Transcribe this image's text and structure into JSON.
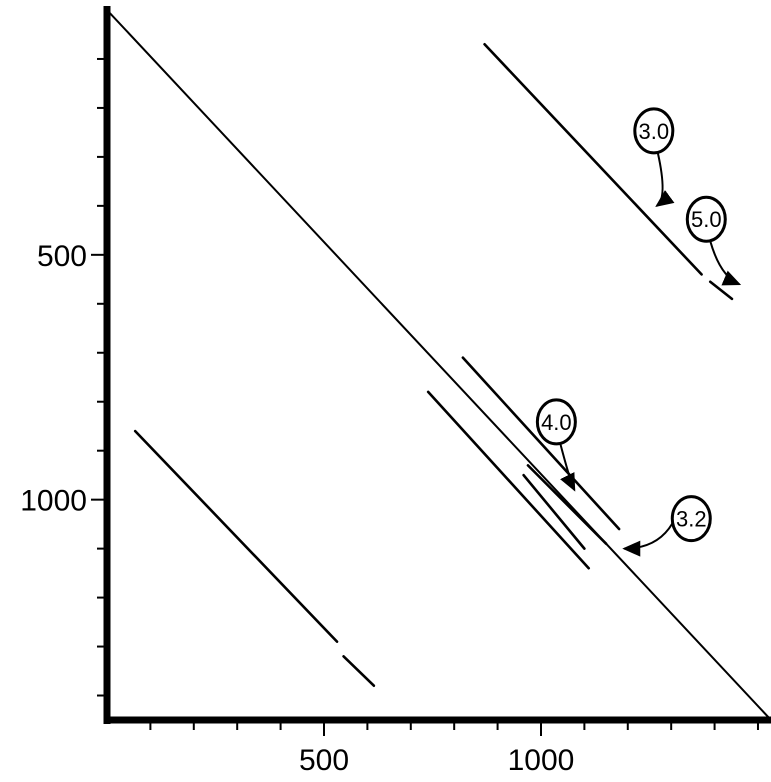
{
  "chart_data": {
    "type": "scatter",
    "title": "",
    "xlabel": "",
    "ylabel": "",
    "xlim": [
      0,
      1530
    ],
    "ylim": [
      0,
      1450
    ],
    "y_inverted": true,
    "x_ticks": {
      "labeled": [
        500,
        1000
      ],
      "all": [
        100,
        200,
        300,
        400,
        500,
        600,
        700,
        800,
        900,
        1000,
        1100,
        1200,
        1300,
        1400,
        1500
      ]
    },
    "y_ticks": {
      "labeled": [
        500,
        1000
      ],
      "all": [
        100,
        200,
        300,
        400,
        500,
        600,
        700,
        800,
        900,
        1000,
        1100,
        1200,
        1300,
        1400
      ]
    },
    "grid": false,
    "legend": "none",
    "line_color": "#000000",
    "segments": [
      {
        "id": "main-diagonal",
        "x": [
          0,
          1530
        ],
        "y": [
          0,
          1450
        ]
      },
      {
        "id": "upper-diagonal",
        "x": [
          870,
          1370
        ],
        "y": [
          70,
          540
        ]
      },
      {
        "id": "upper-diagonal-tail",
        "x": [
          1390,
          1440
        ],
        "y": [
          555,
          590
        ]
      },
      {
        "id": "near-diagonal-1",
        "x": [
          820,
          1180
        ],
        "y": [
          710,
          1060
        ]
      },
      {
        "id": "near-diagonal-2",
        "x": [
          740,
          1110
        ],
        "y": [
          780,
          1140
        ]
      },
      {
        "id": "near-diagonal-3",
        "x": [
          970,
          1150
        ],
        "y": [
          930,
          1090
        ]
      },
      {
        "id": "near-diagonal-4",
        "x": [
          960,
          1100
        ],
        "y": [
          950,
          1100
        ]
      },
      {
        "id": "lower-diagonal",
        "x": [
          65,
          530
        ],
        "y": [
          860,
          1290
        ]
      },
      {
        "id": "lower-diagonal-tail",
        "x": [
          545,
          615
        ],
        "y": [
          1320,
          1380
        ]
      }
    ],
    "annotations": [
      {
        "text": "3.0",
        "points_to": {
          "x": 1260,
          "y": 400
        }
      },
      {
        "text": "5.0",
        "points_to": {
          "x": 1450,
          "y": 560
        }
      },
      {
        "text": "4.0",
        "points_to": {
          "x": 1070,
          "y": 980
        }
      },
      {
        "text": "3.2",
        "points_to": {
          "x": 1185,
          "y": 1100
        }
      }
    ]
  }
}
